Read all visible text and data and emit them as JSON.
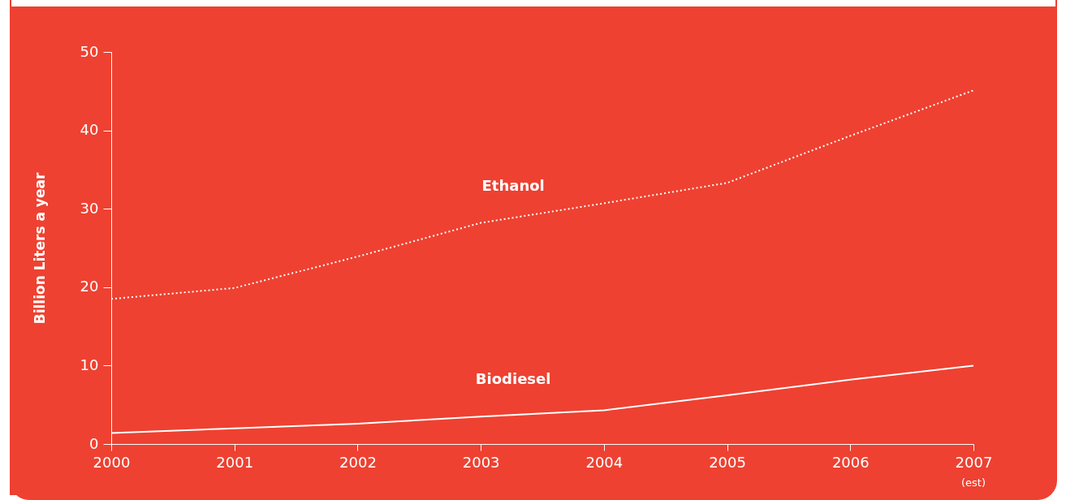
{
  "chart_data": {
    "type": "line",
    "ylabel": "Billion Liters a year",
    "categories": [
      "2000",
      "2001",
      "2002",
      "2003",
      "2004",
      "2005",
      "2006",
      "2007"
    ],
    "series": [
      {
        "name": "Ethanol",
        "color": "#ffffff",
        "line_style": "dotted",
        "values": [
          18.5,
          19.9,
          23.9,
          28.2,
          30.7,
          33.3,
          39.3,
          45.1
        ]
      },
      {
        "name": "Biodiesel",
        "color": "#ffffff",
        "line_style": "solid",
        "values": [
          1.4,
          2.0,
          2.6,
          3.5,
          4.3,
          6.2,
          8.2,
          10.0
        ]
      }
    ],
    "ylim": [
      0,
      50
    ],
    "yticks": [
      0,
      10,
      20,
      30,
      40,
      50
    ],
    "marker": "none",
    "annotations": [
      "(est)"
    ]
  }
}
